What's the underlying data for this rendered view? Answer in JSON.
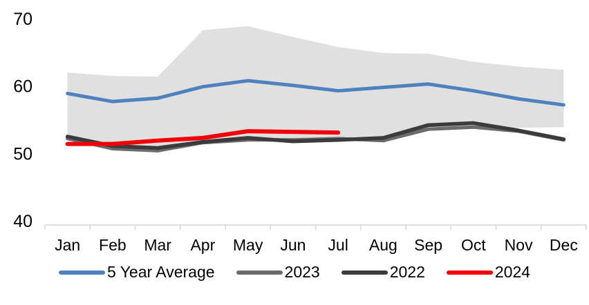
{
  "chart_data": {
    "type": "line",
    "title": "",
    "xlabel": "",
    "ylabel": "",
    "categories": [
      "Jan",
      "Feb",
      "Mar",
      "Apr",
      "May",
      "Jun",
      "Jul",
      "Aug",
      "Sep",
      "Oct",
      "Nov",
      "Dec"
    ],
    "y_ticks": [
      40,
      50,
      60,
      70
    ],
    "ylim": [
      40,
      70
    ],
    "grid": false,
    "legend_position": "bottom",
    "band": {
      "name": "5 year range",
      "color": "#E0E0E0",
      "max": [
        62.1,
        61.6,
        61.5,
        68.4,
        69.0,
        67.4,
        65.9,
        65.0,
        64.9,
        63.7,
        63.0,
        62.5
      ],
      "min": [
        52.8,
        51.2,
        50.8,
        51.9,
        52.3,
        52.0,
        52.0,
        52.1,
        53.8,
        54.3,
        53.9,
        54.0
      ]
    },
    "series": [
      {
        "name": "5 Year Average",
        "color": "#4E81BD",
        "width": 5,
        "values": [
          59.0,
          57.8,
          58.3,
          60.0,
          60.9,
          60.2,
          59.4,
          59.9,
          60.4,
          59.4,
          58.2,
          57.3
        ]
      },
      {
        "name": "2023",
        "color": "#6B6B6E",
        "width": 5,
        "values": [
          52.3,
          50.8,
          50.5,
          51.7,
          52.1,
          52.1,
          52.3,
          52.0,
          53.7,
          54.0,
          53.4,
          52.1
        ]
      },
      {
        "name": "2022",
        "color": "#3B3B3D",
        "width": 5.5,
        "values": [
          52.6,
          51.2,
          50.9,
          51.8,
          52.4,
          51.9,
          52.1,
          52.4,
          54.3,
          54.6,
          53.5,
          52.2
        ]
      },
      {
        "name": "2024",
        "color": "#F20008",
        "width": 6,
        "values": [
          51.5,
          51.5,
          52.0,
          52.4,
          53.4,
          53.3,
          53.2,
          null,
          null,
          null,
          null,
          null
        ]
      }
    ],
    "axis_color": "#D6D6D6",
    "label_color": "#000000"
  }
}
